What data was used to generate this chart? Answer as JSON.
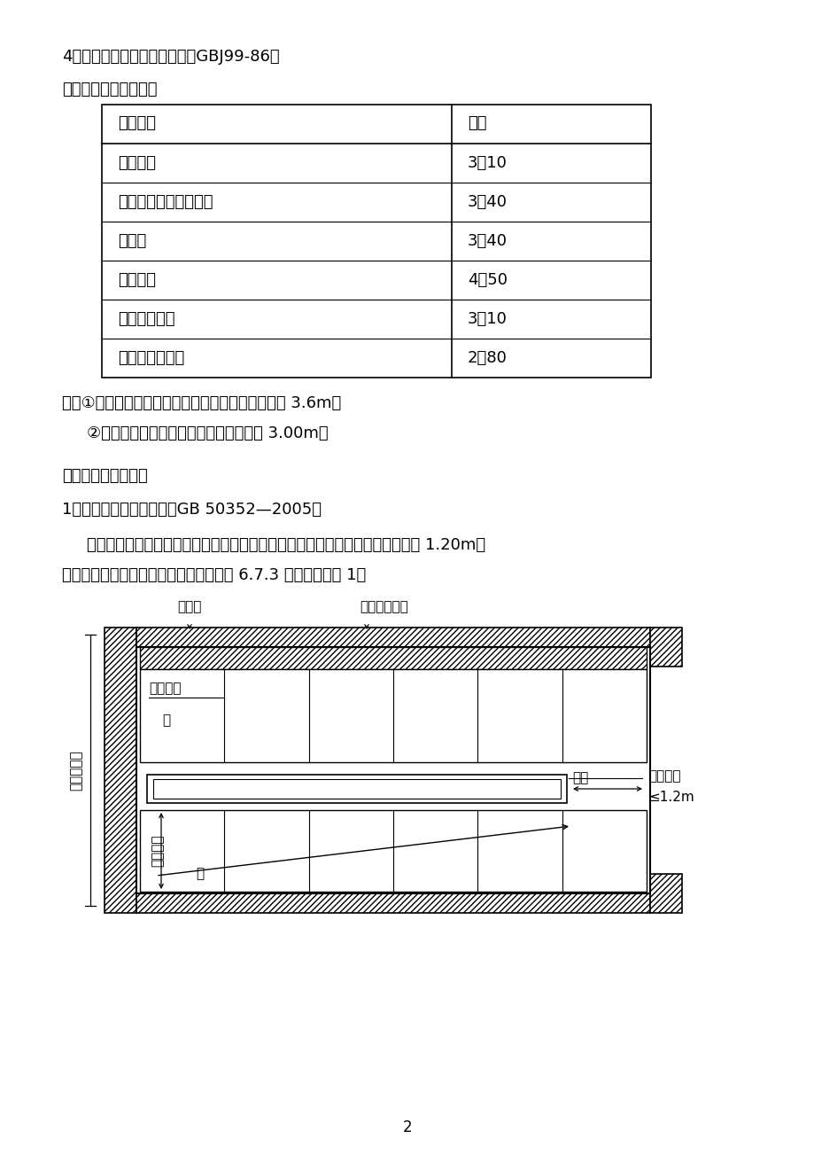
{
  "bg_color": "#ffffff",
  "text_color": "#000000",
  "heading4": "4、《中小学校建筑设计规范》GBJ99-86：",
  "subheading": "学校主要房间的净高：",
  "table_headers": [
    "房间名称",
    "净高"
  ],
  "table_rows": [
    [
      "小学教室",
      "3．10"
    ],
    [
      "中学、中师、幼师教室",
      "3．40"
    ],
    [
      "实验室",
      "3．40"
    ],
    [
      "舞蹈教室",
      "4．50"
    ],
    [
      "教学辅助用房",
      "3．10"
    ],
    [
      "办公及服务用房",
      "2．80"
    ]
  ],
  "note1": "注：①合班教室的净高度根据跨度决定，但不应低于 3.6m。",
  "note2": "②设双层床的学生宿舍，其净高不应低于 3.00m。",
  "section2": "二、关于楼梯的问题",
  "subsection1": "1、《民用建筑设计通则》GB 50352—2005：",
  "para1": "梯段改变方向时，扏手转向端处的平台最小宽度不应小于梯段宽度，并不得小于 1.20m，",
  "para2": "当有搜运大型物件需要时应适量加宽（第 6.7.3 条）；（见图 1）",
  "page_num": "2",
  "diagram_labels": {
    "louti_jian": "楼梯间",
    "louti_bianjie": "楼梯梯段边界",
    "juxing_bubu": "矩形蹏步",
    "xia": "下",
    "ti_jing": "梯井",
    "pingtai_kuandu": "平台宽度",
    "leq_1_2m": "≤1.2m",
    "tiduan_kuandu": "梯段宽度",
    "shang": "上",
    "louti_jian_kaijian": "楼梯间开间"
  }
}
